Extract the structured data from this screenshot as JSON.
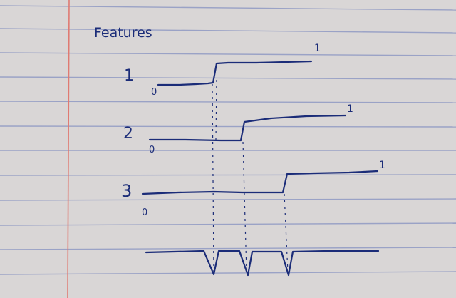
{
  "title": "Features",
  "colors": {
    "paper": "#d9d6d6",
    "rule_line": "#9aa2c6",
    "margin_line": "#e07a72",
    "ink": "#1b2c78"
  },
  "features": [
    {
      "label": "1",
      "low_label": "0",
      "high_label": "1"
    },
    {
      "label": "2",
      "low_label": "0",
      "high_label": "1"
    },
    {
      "label": "3",
      "low_label": "0",
      "high_label": "1"
    }
  ]
}
